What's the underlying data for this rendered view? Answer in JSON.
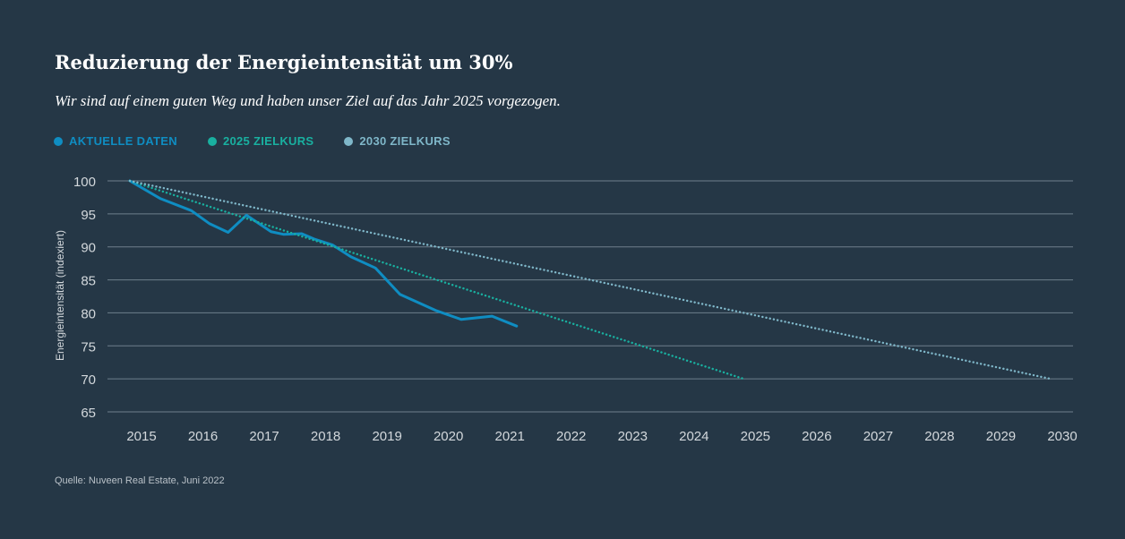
{
  "header": {
    "title": "Reduzierung der Energieintensität um 30%",
    "subtitle": "Wir sind auf einem guten Weg und haben unser Ziel auf das Jahr 2025 vorgezogen."
  },
  "colors": {
    "background": "#253746",
    "actual": "#0f8dc2",
    "target2025": "#19b0a0",
    "target2030": "#7fb7c9",
    "grid": "#6e7f8c",
    "tick": "#d3d8dc"
  },
  "legend": [
    {
      "label": "AKTUELLE DATEN",
      "color": "#0f8dc2"
    },
    {
      "label": "2025 ZIELKURS",
      "color": "#19b0a0"
    },
    {
      "label": "2030 ZIELKURS",
      "color": "#7fb7c9"
    }
  ],
  "source": "Quelle: Nuveen Real Estate, Juni 2022",
  "chart_data": {
    "type": "line",
    "title": "Reduzierung der Energieintensität um 30%",
    "xlabel": "",
    "ylabel": "Energieintensität (indexiert)",
    "xlim": [
      2015,
      2030
    ],
    "ylim": [
      65,
      100
    ],
    "x_ticks": [
      "2015",
      "2016",
      "2017",
      "2018",
      "2019",
      "2020",
      "2021",
      "2022",
      "2023",
      "2024",
      "2025",
      "2026",
      "2027",
      "2028",
      "2029",
      "2030"
    ],
    "y_ticks": [
      "100",
      "95",
      "90",
      "85",
      "80",
      "75",
      "70",
      "65"
    ],
    "grid": true,
    "legend_position": "top-left",
    "series": [
      {
        "name": "AKTUELLE DATEN",
        "style": "solid",
        "x": [
          2015.0,
          2015.5,
          2016.0,
          2016.3,
          2016.6,
          2016.9,
          2017.3,
          2017.5,
          2017.8,
          2018.0,
          2018.3,
          2018.6,
          2019.0,
          2019.4,
          2020.0,
          2020.4,
          2020.9,
          2021.3
        ],
        "y": [
          100,
          97.3,
          95.5,
          93.5,
          92.2,
          94.8,
          92.3,
          91.9,
          92.0,
          91.2,
          90.3,
          88.5,
          86.8,
          82.8,
          80.3,
          79.0,
          79.5,
          78.0
        ]
      },
      {
        "name": "2025 ZIELKURS",
        "style": "dotted",
        "x": [
          2015,
          2025
        ],
        "y": [
          100,
          70
        ]
      },
      {
        "name": "2030 ZIELKURS",
        "style": "dotted",
        "x": [
          2015,
          2030
        ],
        "y": [
          100,
          70
        ]
      }
    ]
  }
}
